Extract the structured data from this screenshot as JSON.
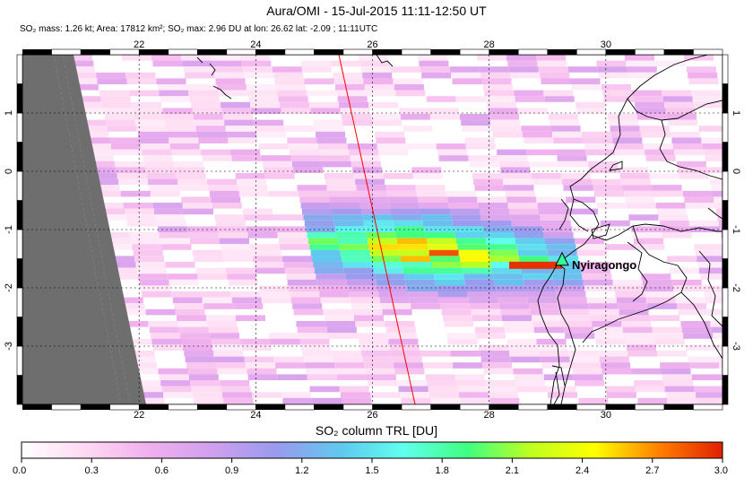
{
  "title": "Aura/OMI - 15-Jul-2015 11:11-12:50 UT",
  "info": {
    "mass": "SO₂ mass: 1.26 kt; Area: 17812 km²; SO₂ max: 2.96 DU at lon: 26.62 lat: -2.09 ; 11:11UTC"
  },
  "map": {
    "lon_range": [
      20.0,
      32.0
    ],
    "lat_range": [
      -4.0,
      2.0
    ],
    "x_ticks": [
      "22",
      "24",
      "26",
      "28",
      "30"
    ],
    "y_ticks_left": [
      "1",
      "0",
      "-1",
      "-2",
      "-3"
    ],
    "y_ticks_right": [
      "1",
      "0",
      "-1",
      "-2",
      "-3"
    ],
    "volcano_label": "Nyiragongo",
    "volcano": {
      "lon": 29.25,
      "lat": -1.52
    },
    "colors": {
      "nodata": "#6e6e6e",
      "track_line": "#ff0000",
      "marker_fill": "#33ff99"
    }
  },
  "colorbar": {
    "title": "SO₂ column TRL [DU]",
    "ticks": [
      "0.0",
      "0.3",
      "0.6",
      "0.9",
      "1.2",
      "1.5",
      "1.8",
      "2.1",
      "2.4",
      "2.7",
      "3.0"
    ],
    "range": [
      0.0,
      3.0
    ],
    "stops": [
      "#ffffff",
      "#ffd9f2",
      "#f0b0ee",
      "#cfa0ee",
      "#9a9aee",
      "#60c8ee",
      "#60ffee",
      "#40ff80",
      "#c0ff20",
      "#ffff00",
      "#ff8000",
      "#e02000"
    ]
  }
}
